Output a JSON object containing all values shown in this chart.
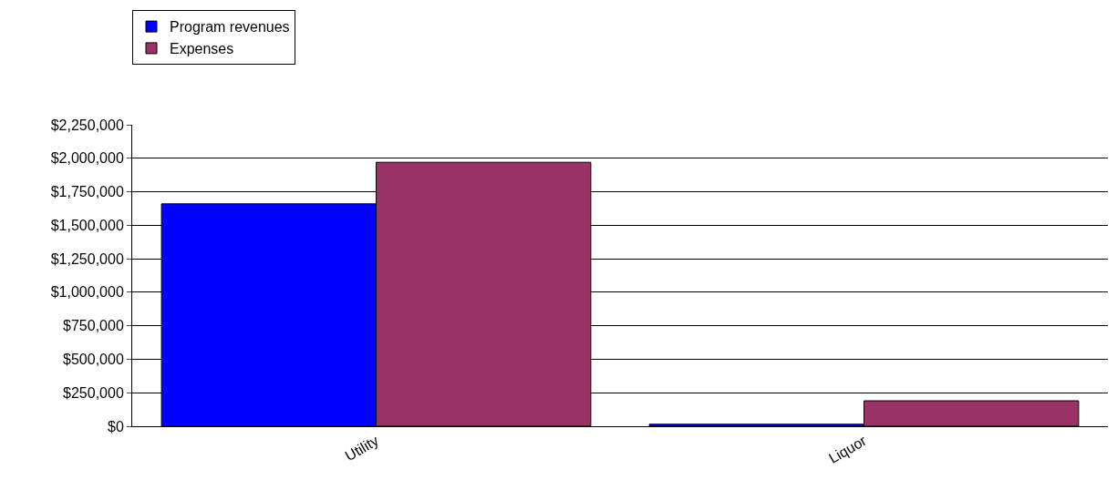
{
  "chart_data": {
    "type": "bar",
    "categories": [
      "Utility",
      "Liquor"
    ],
    "series": [
      {
        "name": "Program revenues",
        "color": "#0000ff",
        "values": [
          1660000,
          15000
        ]
      },
      {
        "name": "Expenses",
        "color": "#993366",
        "values": [
          1970000,
          190000
        ]
      }
    ],
    "ylim": [
      0,
      2250000
    ],
    "yticks": [
      {
        "value": 0,
        "label": "$0"
      },
      {
        "value": 250000,
        "label": "$250,000"
      },
      {
        "value": 500000,
        "label": "$500,000"
      },
      {
        "value": 750000,
        "label": "$750,000"
      },
      {
        "value": 1000000,
        "label": "$1,000,000"
      },
      {
        "value": 1250000,
        "label": "$1,250,000"
      },
      {
        "value": 1500000,
        "label": "$1,500,000"
      },
      {
        "value": 1750000,
        "label": "$1,750,000"
      },
      {
        "value": 2000000,
        "label": "$2,000,000"
      },
      {
        "value": 2250000,
        "label": "$2,250,000"
      }
    ],
    "grid": "y",
    "legend": "top left"
  }
}
